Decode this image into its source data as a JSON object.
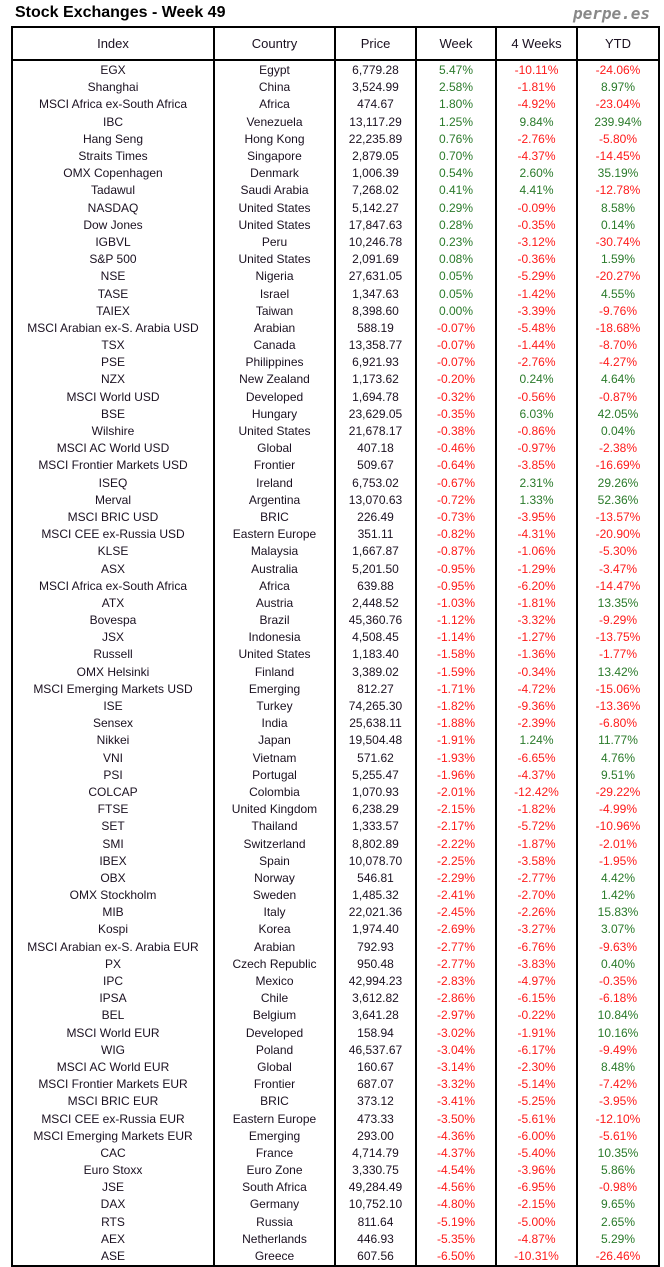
{
  "title": "Stock Exchanges - Week 49",
  "brand": "perpe.es",
  "colors": {
    "positive": "#2a7a2a",
    "negative": "#ff1a1a"
  },
  "headers": [
    "Index",
    "Country",
    "Price",
    "Week",
    "4 Weeks",
    "YTD"
  ],
  "rows": [
    [
      "EGX",
      "Egypt",
      "6,779.28",
      "5.47%",
      "-10.11%",
      "-24.06%"
    ],
    [
      "Shanghai",
      "China",
      "3,524.99",
      "2.58%",
      "-1.81%",
      "8.97%"
    ],
    [
      "MSCI Africa ex-South Africa",
      "Africa",
      "474.67",
      "1.80%",
      "-4.92%",
      "-23.04%"
    ],
    [
      "IBC",
      "Venezuela",
      "13,117.29",
      "1.25%",
      "9.84%",
      "239.94%"
    ],
    [
      "Hang Seng",
      "Hong Kong",
      "22,235.89",
      "0.76%",
      "-2.76%",
      "-5.80%"
    ],
    [
      "Straits Times",
      "Singapore",
      "2,879.05",
      "0.70%",
      "-4.37%",
      "-14.45%"
    ],
    [
      "OMX Copenhagen",
      "Denmark",
      "1,006.39",
      "0.54%",
      "2.60%",
      "35.19%"
    ],
    [
      "Tadawul",
      "Saudi Arabia",
      "7,268.02",
      "0.41%",
      "4.41%",
      "-12.78%"
    ],
    [
      "NASDAQ",
      "United States",
      "5,142.27",
      "0.29%",
      "-0.09%",
      "8.58%"
    ],
    [
      "Dow Jones",
      "United States",
      "17,847.63",
      "0.28%",
      "-0.35%",
      "0.14%"
    ],
    [
      "IGBVL",
      "Peru",
      "10,246.78",
      "0.23%",
      "-3.12%",
      "-30.74%"
    ],
    [
      "S&P 500",
      "United States",
      "2,091.69",
      "0.08%",
      "-0.36%",
      "1.59%"
    ],
    [
      "NSE",
      "Nigeria",
      "27,631.05",
      "0.05%",
      "-5.29%",
      "-20.27%"
    ],
    [
      "TASE",
      "Israel",
      "1,347.63",
      "0.05%",
      "-1.42%",
      "4.55%"
    ],
    [
      "TAIEX",
      "Taiwan",
      "8,398.60",
      "0.00%",
      "-3.39%",
      "-9.76%"
    ],
    [
      "MSCI Arabian ex-S. Arabia USD",
      "Arabian",
      "588.19",
      "-0.07%",
      "-5.48%",
      "-18.68%"
    ],
    [
      "TSX",
      "Canada",
      "13,358.77",
      "-0.07%",
      "-1.44%",
      "-8.70%"
    ],
    [
      "PSE",
      "Philippines",
      "6,921.93",
      "-0.07%",
      "-2.76%",
      "-4.27%"
    ],
    [
      "NZX",
      "New Zealand",
      "1,173.62",
      "-0.20%",
      "0.24%",
      "4.64%"
    ],
    [
      "MSCI World USD",
      "Developed",
      "1,694.78",
      "-0.32%",
      "-0.56%",
      "-0.87%"
    ],
    [
      "BSE",
      "Hungary",
      "23,629.05",
      "-0.35%",
      "6.03%",
      "42.05%"
    ],
    [
      "Wilshire",
      "United States",
      "21,678.17",
      "-0.38%",
      "-0.86%",
      "0.04%"
    ],
    [
      "MSCI AC World USD",
      "Global",
      "407.18",
      "-0.46%",
      "-0.97%",
      "-2.38%"
    ],
    [
      "MSCI Frontier Markets USD",
      "Frontier",
      "509.67",
      "-0.64%",
      "-3.85%",
      "-16.69%"
    ],
    [
      "ISEQ",
      "Ireland",
      "6,753.02",
      "-0.67%",
      "2.31%",
      "29.26%"
    ],
    [
      "Merval",
      "Argentina",
      "13,070.63",
      "-0.72%",
      "1.33%",
      "52.36%"
    ],
    [
      "MSCI BRIC USD",
      "BRIC",
      "226.49",
      "-0.73%",
      "-3.95%",
      "-13.57%"
    ],
    [
      "MSCI CEE ex-Russia USD",
      "Eastern Europe",
      "351.11",
      "-0.82%",
      "-4.31%",
      "-20.90%"
    ],
    [
      "KLSE",
      "Malaysia",
      "1,667.87",
      "-0.87%",
      "-1.06%",
      "-5.30%"
    ],
    [
      "ASX",
      "Australia",
      "5,201.50",
      "-0.95%",
      "-1.29%",
      "-3.47%"
    ],
    [
      "MSCI Africa ex-South Africa",
      "Africa",
      "639.88",
      "-0.95%",
      "-6.20%",
      "-14.47%"
    ],
    [
      "ATX",
      "Austria",
      "2,448.52",
      "-1.03%",
      "-1.81%",
      "13.35%"
    ],
    [
      "Bovespa",
      "Brazil",
      "45,360.76",
      "-1.12%",
      "-3.32%",
      "-9.29%"
    ],
    [
      "JSX",
      "Indonesia",
      "4,508.45",
      "-1.14%",
      "-1.27%",
      "-13.75%"
    ],
    [
      "Russell",
      "United States",
      "1,183.40",
      "-1.58%",
      "-1.36%",
      "-1.77%"
    ],
    [
      "OMX Helsinki",
      "Finland",
      "3,389.02",
      "-1.59%",
      "-0.34%",
      "13.42%"
    ],
    [
      "MSCI Emerging Markets USD",
      "Emerging",
      "812.27",
      "-1.71%",
      "-4.72%",
      "-15.06%"
    ],
    [
      "ISE",
      "Turkey",
      "74,265.30",
      "-1.82%",
      "-9.36%",
      "-13.36%"
    ],
    [
      "Sensex",
      "India",
      "25,638.11",
      "-1.88%",
      "-2.39%",
      "-6.80%"
    ],
    [
      "Nikkei",
      "Japan",
      "19,504.48",
      "-1.91%",
      "1.24%",
      "11.77%"
    ],
    [
      "VNI",
      "Vietnam",
      "571.62",
      "-1.93%",
      "-6.65%",
      "4.76%"
    ],
    [
      "PSI",
      "Portugal",
      "5,255.47",
      "-1.96%",
      "-4.37%",
      "9.51%"
    ],
    [
      "COLCAP",
      "Colombia",
      "1,070.93",
      "-2.01%",
      "-12.42%",
      "-29.22%"
    ],
    [
      "FTSE",
      "United Kingdom",
      "6,238.29",
      "-2.15%",
      "-1.82%",
      "-4.99%"
    ],
    [
      "SET",
      "Thailand",
      "1,333.57",
      "-2.17%",
      "-5.72%",
      "-10.96%"
    ],
    [
      "SMI",
      "Switzerland",
      "8,802.89",
      "-2.22%",
      "-1.87%",
      "-2.01%"
    ],
    [
      "IBEX",
      "Spain",
      "10,078.70",
      "-2.25%",
      "-3.58%",
      "-1.95%"
    ],
    [
      "OBX",
      "Norway",
      "546.81",
      "-2.29%",
      "-2.77%",
      "4.42%"
    ],
    [
      "OMX Stockholm",
      "Sweden",
      "1,485.32",
      "-2.41%",
      "-2.70%",
      "1.42%"
    ],
    [
      "MIB",
      "Italy",
      "22,021.36",
      "-2.45%",
      "-2.26%",
      "15.83%"
    ],
    [
      "Kospi",
      "Korea",
      "1,974.40",
      "-2.69%",
      "-3.27%",
      "3.07%"
    ],
    [
      "MSCI Arabian ex-S. Arabia EUR",
      "Arabian",
      "792.93",
      "-2.77%",
      "-6.76%",
      "-9.63%"
    ],
    [
      "PX",
      "Czech Republic",
      "950.48",
      "-2.77%",
      "-3.83%",
      "0.40%"
    ],
    [
      "IPC",
      "Mexico",
      "42,994.23",
      "-2.83%",
      "-4.97%",
      "-0.35%"
    ],
    [
      "IPSA",
      "Chile",
      "3,612.82",
      "-2.86%",
      "-6.15%",
      "-6.18%"
    ],
    [
      "BEL",
      "Belgium",
      "3,641.28",
      "-2.97%",
      "-0.22%",
      "10.84%"
    ],
    [
      "MSCI World EUR",
      "Developed",
      "158.94",
      "-3.02%",
      "-1.91%",
      "10.16%"
    ],
    [
      "WIG",
      "Poland",
      "46,537.67",
      "-3.04%",
      "-6.17%",
      "-9.49%"
    ],
    [
      "MSCI AC World EUR",
      "Global",
      "160.67",
      "-3.14%",
      "-2.30%",
      "8.48%"
    ],
    [
      "MSCI Frontier Markets EUR",
      "Frontier",
      "687.07",
      "-3.32%",
      "-5.14%",
      "-7.42%"
    ],
    [
      "MSCI BRIC EUR",
      "BRIC",
      "373.12",
      "-3.41%",
      "-5.25%",
      "-3.95%"
    ],
    [
      "MSCI CEE ex-Russia EUR",
      "Eastern Europe",
      "473.33",
      "-3.50%",
      "-5.61%",
      "-12.10%"
    ],
    [
      "MSCI Emerging Markets EUR",
      "Emerging",
      "293.00",
      "-4.36%",
      "-6.00%",
      "-5.61%"
    ],
    [
      "CAC",
      "France",
      "4,714.79",
      "-4.37%",
      "-5.40%",
      "10.35%"
    ],
    [
      "Euro Stoxx",
      "Euro Zone",
      "3,330.75",
      "-4.54%",
      "-3.96%",
      "5.86%"
    ],
    [
      "JSE",
      "South Africa",
      "49,284.49",
      "-4.56%",
      "-6.95%",
      "-0.98%"
    ],
    [
      "DAX",
      "Germany",
      "10,752.10",
      "-4.80%",
      "-2.15%",
      "9.65%"
    ],
    [
      "RTS",
      "Russia",
      "811.64",
      "-5.19%",
      "-5.00%",
      "2.65%"
    ],
    [
      "AEX",
      "Netherlands",
      "446.93",
      "-5.35%",
      "-4.87%",
      "5.29%"
    ],
    [
      "ASE",
      "Greece",
      "607.56",
      "-6.50%",
      "-10.31%",
      "-26.46%"
    ]
  ]
}
